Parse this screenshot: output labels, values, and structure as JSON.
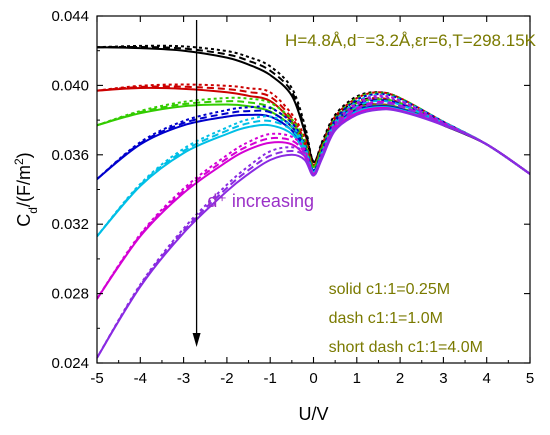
{
  "chart_data": {
    "type": "line",
    "title": "",
    "xlabel": "U/V",
    "ylabel": "C_d/(F/m^2)",
    "xlim": [
      -5,
      5
    ],
    "ylim": [
      0.024,
      0.044
    ],
    "xticks": [
      -5,
      -4,
      -3,
      -2,
      -1,
      0,
      1,
      2,
      3,
      4,
      5
    ],
    "yticks": [
      0.024,
      0.028,
      0.032,
      0.036,
      0.04,
      0.044
    ],
    "ytick_labels": [
      "0.024",
      "0.028",
      "0.032",
      "0.036",
      "0.040",
      "0.044"
    ],
    "xtick_labels": [
      "-5",
      "-4",
      "-3",
      "-2",
      "-1",
      "0",
      "1",
      "2",
      "3",
      "4",
      "5"
    ],
    "annotations": {
      "params": "H=4.8Å,d⁻=3.2Å,εr=6,T=298.15K",
      "increasing": "d⁺ increasing",
      "legend_solid": "solid c1:1=0.25M",
      "legend_dash": "dash c1:1=1.0M",
      "legend_short_dash": "short dash c1:1=4.0M"
    },
    "line_styles": [
      "solid",
      "dash",
      "short dash"
    ],
    "series": [
      {
        "color": "#000000",
        "points": [
          [
            -5,
            0.0422
          ],
          [
            -4,
            0.04215
          ],
          [
            -3,
            0.042
          ],
          [
            -2,
            0.0416
          ],
          [
            -1.5,
            0.0412
          ],
          [
            -1,
            0.0406
          ],
          [
            -0.5,
            0.0394
          ],
          [
            -0.2,
            0.0373
          ],
          [
            0,
            0.0356
          ],
          [
            0.2,
            0.0366
          ],
          [
            0.5,
            0.038
          ],
          [
            1,
            0.0388
          ],
          [
            1.5,
            0.0389
          ],
          [
            2,
            0.0387
          ],
          [
            3,
            0.0377
          ],
          [
            4,
            0.0366
          ],
          [
            5,
            0.0349
          ]
        ]
      },
      {
        "color": "#cc0000",
        "points": [
          [
            -5,
            0.0397
          ],
          [
            -4,
            0.03985
          ],
          [
            -3,
            0.0398
          ],
          [
            -2,
            0.0396
          ],
          [
            -1.5,
            0.0394
          ],
          [
            -1,
            0.0391
          ],
          [
            -0.5,
            0.0379
          ],
          [
            -0.2,
            0.0366
          ],
          [
            0,
            0.0354
          ],
          [
            0.2,
            0.0364
          ],
          [
            0.5,
            0.0379
          ],
          [
            1,
            0.0387
          ],
          [
            1.5,
            0.0389
          ],
          [
            2,
            0.0387
          ],
          [
            3,
            0.0378
          ],
          [
            4,
            0.0366
          ],
          [
            5,
            0.0349
          ]
        ]
      },
      {
        "color": "#33cc00",
        "points": [
          [
            -5,
            0.0377
          ],
          [
            -4,
            0.0384
          ],
          [
            -3,
            0.0388
          ],
          [
            -2,
            0.0389
          ],
          [
            -1.5,
            0.0388
          ],
          [
            -1,
            0.0385
          ],
          [
            -0.5,
            0.0376
          ],
          [
            -0.2,
            0.0364
          ],
          [
            0,
            0.0353
          ],
          [
            0.2,
            0.0363
          ],
          [
            0.5,
            0.0378
          ],
          [
            1,
            0.0387
          ],
          [
            1.5,
            0.03885
          ],
          [
            2,
            0.0387
          ],
          [
            3,
            0.0378
          ],
          [
            4,
            0.0366
          ],
          [
            5,
            0.0349
          ]
        ]
      },
      {
        "color": "#0000cc",
        "points": [
          [
            -5,
            0.0346
          ],
          [
            -4,
            0.0366
          ],
          [
            -3,
            0.0377
          ],
          [
            -2,
            0.0382
          ],
          [
            -1.5,
            0.0383
          ],
          [
            -1,
            0.0382
          ],
          [
            -0.5,
            0.0374
          ],
          [
            -0.2,
            0.0362
          ],
          [
            0,
            0.0351
          ],
          [
            0.2,
            0.0361
          ],
          [
            0.5,
            0.0377
          ],
          [
            1,
            0.0386
          ],
          [
            1.5,
            0.0388
          ],
          [
            2,
            0.03865
          ],
          [
            3,
            0.0378
          ],
          [
            4,
            0.0366
          ],
          [
            5,
            0.0349
          ]
        ]
      },
      {
        "color": "#00bfe6",
        "points": [
          [
            -5,
            0.0313
          ],
          [
            -4,
            0.0342
          ],
          [
            -3,
            0.0361
          ],
          [
            -2,
            0.0372
          ],
          [
            -1.5,
            0.0376
          ],
          [
            -1,
            0.0377
          ],
          [
            -0.5,
            0.0372
          ],
          [
            -0.2,
            0.0361
          ],
          [
            0,
            0.035
          ],
          [
            0.2,
            0.036
          ],
          [
            0.5,
            0.0376
          ],
          [
            1,
            0.0385
          ],
          [
            1.5,
            0.03875
          ],
          [
            2,
            0.0386
          ],
          [
            3,
            0.0378
          ],
          [
            4,
            0.0366
          ],
          [
            5,
            0.0349
          ]
        ]
      },
      {
        "color": "#d400d4",
        "points": [
          [
            -5,
            0.0277
          ],
          [
            -4,
            0.0313
          ],
          [
            -3,
            0.0338
          ],
          [
            -2,
            0.0356
          ],
          [
            -1.5,
            0.0363
          ],
          [
            -1,
            0.0367
          ],
          [
            -0.5,
            0.0366
          ],
          [
            -0.2,
            0.0359
          ],
          [
            0,
            0.0349
          ],
          [
            0.2,
            0.0359
          ],
          [
            0.5,
            0.0375
          ],
          [
            1,
            0.0384
          ],
          [
            1.5,
            0.0387
          ],
          [
            2,
            0.03855
          ],
          [
            3,
            0.03775
          ],
          [
            4,
            0.0366
          ],
          [
            5,
            0.0349
          ]
        ]
      },
      {
        "color": "#8a2be2",
        "points": [
          [
            -5,
            0.0243
          ],
          [
            -4,
            0.0284
          ],
          [
            -3,
            0.0315
          ],
          [
            -2,
            0.0339
          ],
          [
            -1.5,
            0.0349
          ],
          [
            -1,
            0.0357
          ],
          [
            -0.5,
            0.036
          ],
          [
            -0.2,
            0.0357
          ],
          [
            0,
            0.0348
          ],
          [
            0.2,
            0.0358
          ],
          [
            0.5,
            0.0374
          ],
          [
            1,
            0.0383
          ],
          [
            1.5,
            0.0386
          ],
          [
            2,
            0.0385
          ],
          [
            3,
            0.0377
          ],
          [
            4,
            0.0366
          ],
          [
            5,
            0.0349
          ]
        ]
      }
    ]
  }
}
